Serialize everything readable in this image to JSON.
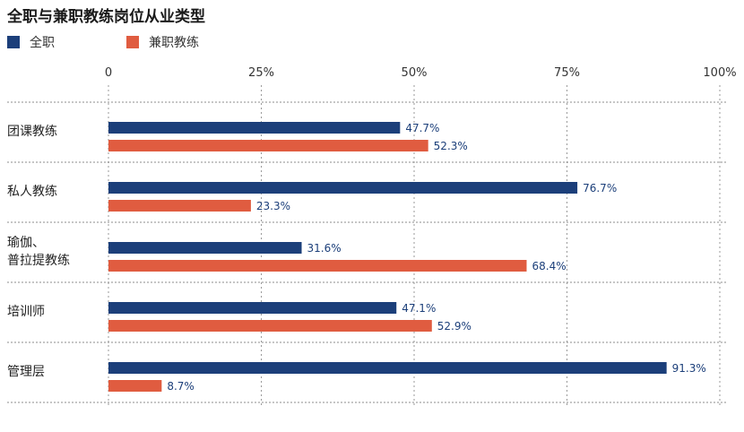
{
  "chart_data": {
    "type": "bar",
    "orientation": "horizontal",
    "title": "全职与兼职教练岗位从业类型",
    "categories": [
      [
        "团课教练"
      ],
      [
        "私人教练"
      ],
      [
        "瑜伽、",
        "普拉提教练"
      ],
      [
        "培训师"
      ],
      [
        "管理层"
      ]
    ],
    "series": [
      {
        "name": "全职",
        "color": "#1c3f7a",
        "values": [
          47.7,
          76.7,
          31.6,
          47.1,
          91.3
        ],
        "labels": [
          "47.7%",
          "76.7%",
          "31.6%",
          "47.1%",
          "91.3%"
        ]
      },
      {
        "name": "兼职教练",
        "color": "#e05c40",
        "values": [
          52.3,
          23.3,
          68.4,
          52.9,
          8.7
        ],
        "labels": [
          "52.3%",
          "23.3%",
          "68.4%",
          "52.9%",
          "8.7%"
        ]
      }
    ],
    "xlim": [
      0,
      100
    ],
    "xticks": [
      0,
      25,
      50,
      75,
      100
    ],
    "xtick_labels": [
      "0",
      "25%",
      "50%",
      "75%",
      "100%"
    ],
    "grid": true,
    "legend_position": "top-left"
  }
}
